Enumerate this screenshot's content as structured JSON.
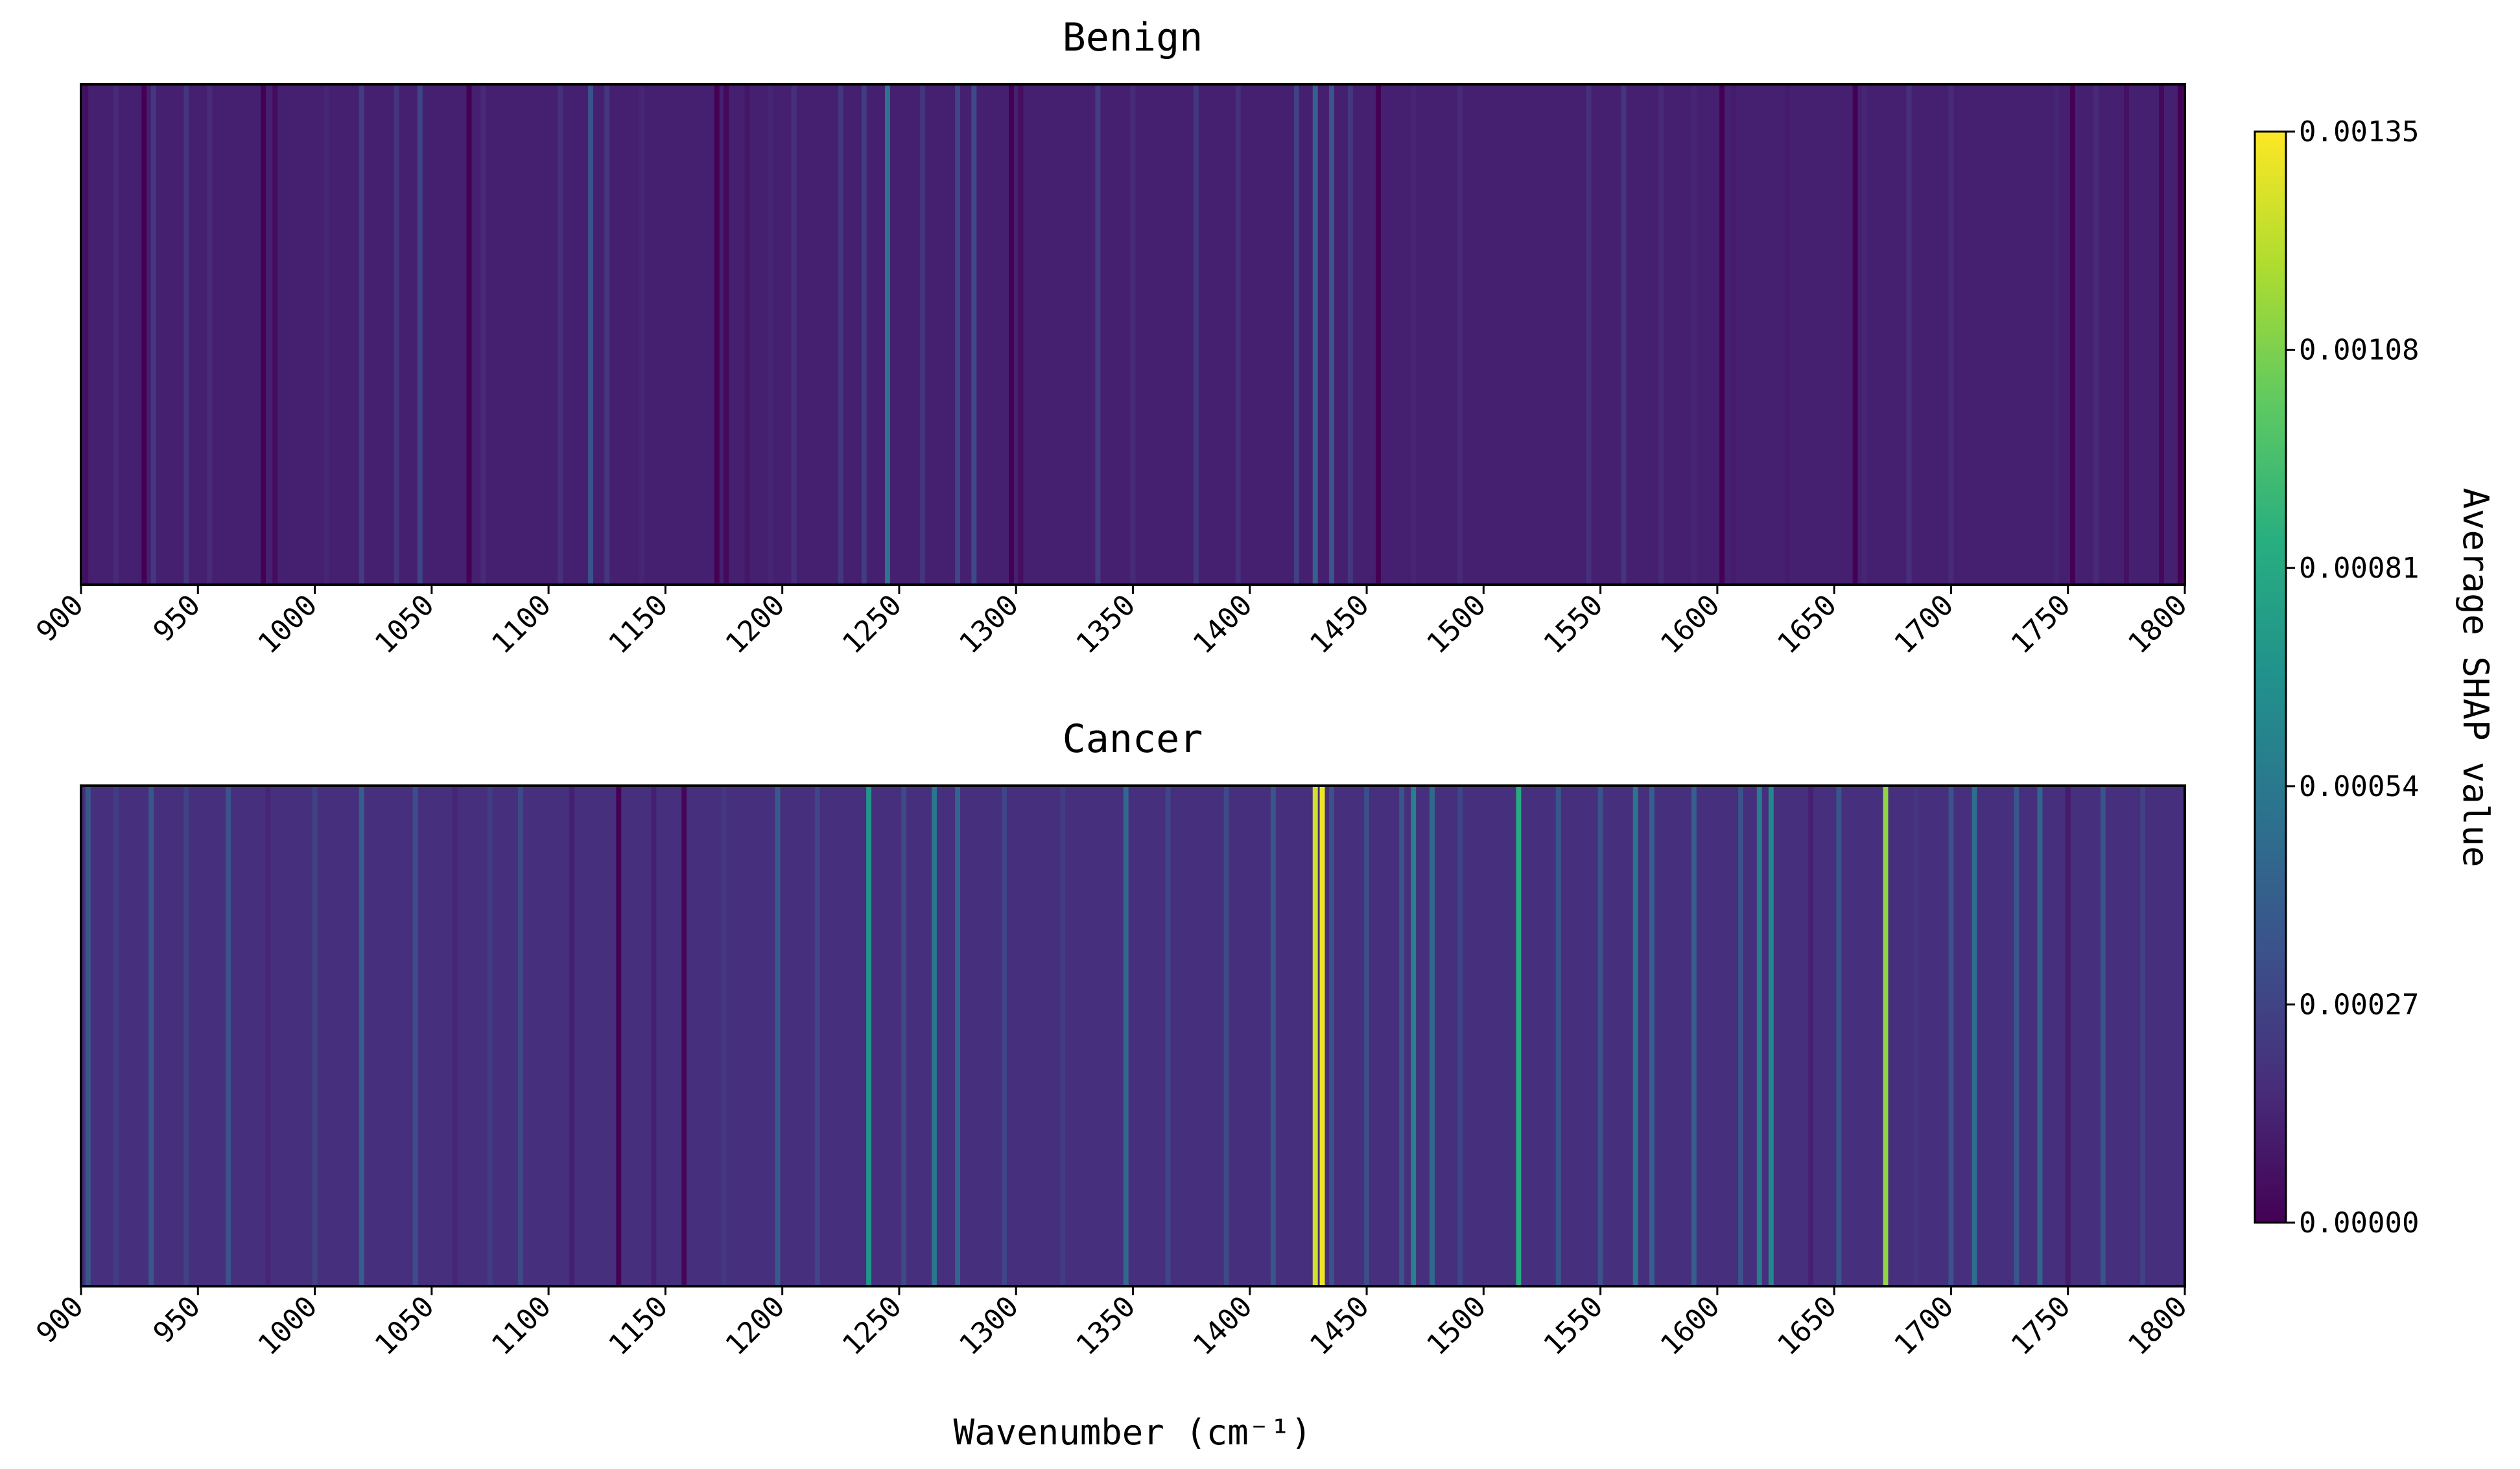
{
  "chart_data": [
    {
      "type": "heatmap",
      "title": "Benign",
      "xlabel": "",
      "ylabel": "",
      "xlim": [
        900,
        1800
      ],
      "xticks": [
        "900",
        "950",
        "1000",
        "1050",
        "1100",
        "1150",
        "1200",
        "1250",
        "1300",
        "1350",
        "1400",
        "1450",
        "1500",
        "1550",
        "1600",
        "1650",
        "1700",
        "1750",
        "1800"
      ],
      "colormap": "viridis",
      "vlim": [
        0.0,
        0.00135
      ],
      "base_value": 0.00012,
      "bands": [
        {
          "x": 902,
          "v": 5e-05
        },
        {
          "x": 915,
          "v": 0.00016
        },
        {
          "x": 927,
          "v": 0.0
        },
        {
          "x": 931,
          "v": 0.00022
        },
        {
          "x": 945,
          "v": 0.0002
        },
        {
          "x": 955,
          "v": 0.00016
        },
        {
          "x": 978,
          "v": 0.0
        },
        {
          "x": 983,
          "v": 4e-05
        },
        {
          "x": 1005,
          "v": 0.00014
        },
        {
          "x": 1020,
          "v": 0.00024
        },
        {
          "x": 1035,
          "v": 0.0002
        },
        {
          "x": 1045,
          "v": 0.00028
        },
        {
          "x": 1066,
          "v": 0.0
        },
        {
          "x": 1072,
          "v": 0.00016
        },
        {
          "x": 1105,
          "v": 0.00018
        },
        {
          "x": 1118,
          "v": 0.00034
        },
        {
          "x": 1125,
          "v": 0.00022
        },
        {
          "x": 1140,
          "v": 0.00014
        },
        {
          "x": 1152,
          "v": 0.00012
        },
        {
          "x": 1172,
          "v": 0.0
        },
        {
          "x": 1176,
          "v": 3e-05
        },
        {
          "x": 1185,
          "v": 8e-05
        },
        {
          "x": 1195,
          "v": 0.00014
        },
        {
          "x": 1205,
          "v": 0.00018
        },
        {
          "x": 1225,
          "v": 0.00022
        },
        {
          "x": 1235,
          "v": 0.00024
        },
        {
          "x": 1245,
          "v": 0.00052
        },
        {
          "x": 1260,
          "v": 0.0002
        },
        {
          "x": 1275,
          "v": 0.00028
        },
        {
          "x": 1282,
          "v": 0.0003
        },
        {
          "x": 1298,
          "v": 0.0
        },
        {
          "x": 1302,
          "v": 5e-05
        },
        {
          "x": 1320,
          "v": 0.00012
        },
        {
          "x": 1335,
          "v": 0.00024
        },
        {
          "x": 1350,
          "v": 0.00016
        },
        {
          "x": 1377,
          "v": 0.00022
        },
        {
          "x": 1395,
          "v": 0.00018
        },
        {
          "x": 1420,
          "v": 0.00026
        },
        {
          "x": 1428,
          "v": 0.00042
        },
        {
          "x": 1435,
          "v": 0.00036
        },
        {
          "x": 1443,
          "v": 0.00022
        },
        {
          "x": 1455,
          "v": 0.0
        },
        {
          "x": 1470,
          "v": 0.00014
        },
        {
          "x": 1490,
          "v": 0.00016
        },
        {
          "x": 1520,
          "v": 0.00012
        },
        {
          "x": 1545,
          "v": 0.00018
        },
        {
          "x": 1560,
          "v": 0.0002
        },
        {
          "x": 1576,
          "v": 0.00016
        },
        {
          "x": 1590,
          "v": 0.00014
        },
        {
          "x": 1602,
          "v": 0.0
        },
        {
          "x": 1607,
          "v": 0.0001
        },
        {
          "x": 1630,
          "v": 0.0001
        },
        {
          "x": 1659,
          "v": 0.0
        },
        {
          "x": 1663,
          "v": 0.00014
        },
        {
          "x": 1682,
          "v": 0.00018
        },
        {
          "x": 1700,
          "v": 0.00016
        },
        {
          "x": 1730,
          "v": 0.00012
        },
        {
          "x": 1745,
          "v": 0.00014
        },
        {
          "x": 1752,
          "v": 0.0
        },
        {
          "x": 1762,
          "v": 0.00016
        },
        {
          "x": 1775,
          "v": 6e-05
        },
        {
          "x": 1790,
          "v": 3e-05
        },
        {
          "x": 1798,
          "v": 0.0
        }
      ]
    },
    {
      "type": "heatmap",
      "title": "Cancer",
      "xlabel": "Wavenumber (cm⁻¹)",
      "ylabel": "",
      "xlim": [
        900,
        1800
      ],
      "xticks": [
        "900",
        "950",
        "1000",
        "1050",
        "1100",
        "1150",
        "1200",
        "1250",
        "1300",
        "1350",
        "1400",
        "1450",
        "1500",
        "1550",
        "1600",
        "1650",
        "1700",
        "1750",
        "1800"
      ],
      "colormap": "viridis",
      "vlim": [
        0.0,
        0.00135
      ],
      "base_value": 0.00018,
      "bands": [
        {
          "x": 903,
          "v": 0.00036
        },
        {
          "x": 915,
          "v": 0.00024
        },
        {
          "x": 930,
          "v": 0.00036
        },
        {
          "x": 945,
          "v": 0.00026
        },
        {
          "x": 963,
          "v": 0.00034
        },
        {
          "x": 980,
          "v": 0.00014
        },
        {
          "x": 1000,
          "v": 0.00026
        },
        {
          "x": 1020,
          "v": 0.0004
        },
        {
          "x": 1043,
          "v": 0.00032
        },
        {
          "x": 1060,
          "v": 0.00014
        },
        {
          "x": 1075,
          "v": 0.00024
        },
        {
          "x": 1088,
          "v": 0.0003
        },
        {
          "x": 1110,
          "v": 0.00012
        },
        {
          "x": 1130,
          "v": 0.0
        },
        {
          "x": 1145,
          "v": 0.00012
        },
        {
          "x": 1158,
          "v": 2e-05
        },
        {
          "x": 1175,
          "v": 0.00022
        },
        {
          "x": 1198,
          "v": 0.00038
        },
        {
          "x": 1215,
          "v": 0.00028
        },
        {
          "x": 1237,
          "v": 0.0007
        },
        {
          "x": 1252,
          "v": 0.0003
        },
        {
          "x": 1265,
          "v": 0.00052
        },
        {
          "x": 1275,
          "v": 0.00044
        },
        {
          "x": 1295,
          "v": 0.00028
        },
        {
          "x": 1320,
          "v": 0.00024
        },
        {
          "x": 1347,
          "v": 0.00046
        },
        {
          "x": 1365,
          "v": 0.00028
        },
        {
          "x": 1390,
          "v": 0.0003
        },
        {
          "x": 1410,
          "v": 0.00036
        },
        {
          "x": 1428,
          "v": 0.00126
        },
        {
          "x": 1431,
          "v": 0.00132
        },
        {
          "x": 1435,
          "v": 0.00034
        },
        {
          "x": 1450,
          "v": 0.00032
        },
        {
          "x": 1465,
          "v": 0.00036
        },
        {
          "x": 1470,
          "v": 0.00058
        },
        {
          "x": 1478,
          "v": 0.00046
        },
        {
          "x": 1490,
          "v": 0.00028
        },
        {
          "x": 1515,
          "v": 0.00082
        },
        {
          "x": 1532,
          "v": 0.00036
        },
        {
          "x": 1550,
          "v": 0.00034
        },
        {
          "x": 1565,
          "v": 0.00052
        },
        {
          "x": 1572,
          "v": 0.0004
        },
        {
          "x": 1590,
          "v": 0.0004
        },
        {
          "x": 1610,
          "v": 0.00034
        },
        {
          "x": 1618,
          "v": 0.00056
        },
        {
          "x": 1623,
          "v": 0.00062
        },
        {
          "x": 1640,
          "v": 0.00012
        },
        {
          "x": 1652,
          "v": 0.00036
        },
        {
          "x": 1672,
          "v": 0.00112
        },
        {
          "x": 1685,
          "v": 0.0002
        },
        {
          "x": 1700,
          "v": 0.00034
        },
        {
          "x": 1710,
          "v": 0.00048
        },
        {
          "x": 1728,
          "v": 0.00036
        },
        {
          "x": 1738,
          "v": 0.00044
        },
        {
          "x": 1750,
          "v": 0.0001
        },
        {
          "x": 1765,
          "v": 0.00034
        },
        {
          "x": 1782,
          "v": 0.00026
        },
        {
          "x": 1795,
          "v": 0.00018
        }
      ]
    }
  ],
  "colorbar": {
    "label": "Average SHAP value",
    "ticks": [
      "0.00000",
      "0.00027",
      "0.00054",
      "0.00081",
      "0.00108",
      "0.00135"
    ],
    "min": 0.0,
    "max": 0.00135
  }
}
